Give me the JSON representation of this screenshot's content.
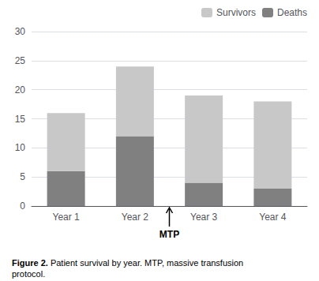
{
  "chart_data": {
    "type": "bar",
    "stacked": true,
    "categories": [
      "Year 1",
      "Year 2",
      "Year 3",
      "Year 4"
    ],
    "series": [
      {
        "name": "Deaths",
        "color": "#808080",
        "values": [
          6,
          12,
          4,
          3
        ]
      },
      {
        "name": "Survivors",
        "color": "#c8c8c8",
        "values": [
          10,
          12,
          15,
          15
        ]
      }
    ],
    "ylim": [
      0,
      30
    ],
    "yticks": [
      0,
      5,
      10,
      15,
      20,
      25,
      30
    ],
    "grid": true,
    "legend": "upper right",
    "annotations": [
      {
        "text": "MTP",
        "between": [
          "Year 2",
          "Year 3"
        ]
      }
    ],
    "caption_bold": "Figure 2.",
    "caption": " Patient survival by year. MTP, massive transfusion\nprotocol."
  }
}
